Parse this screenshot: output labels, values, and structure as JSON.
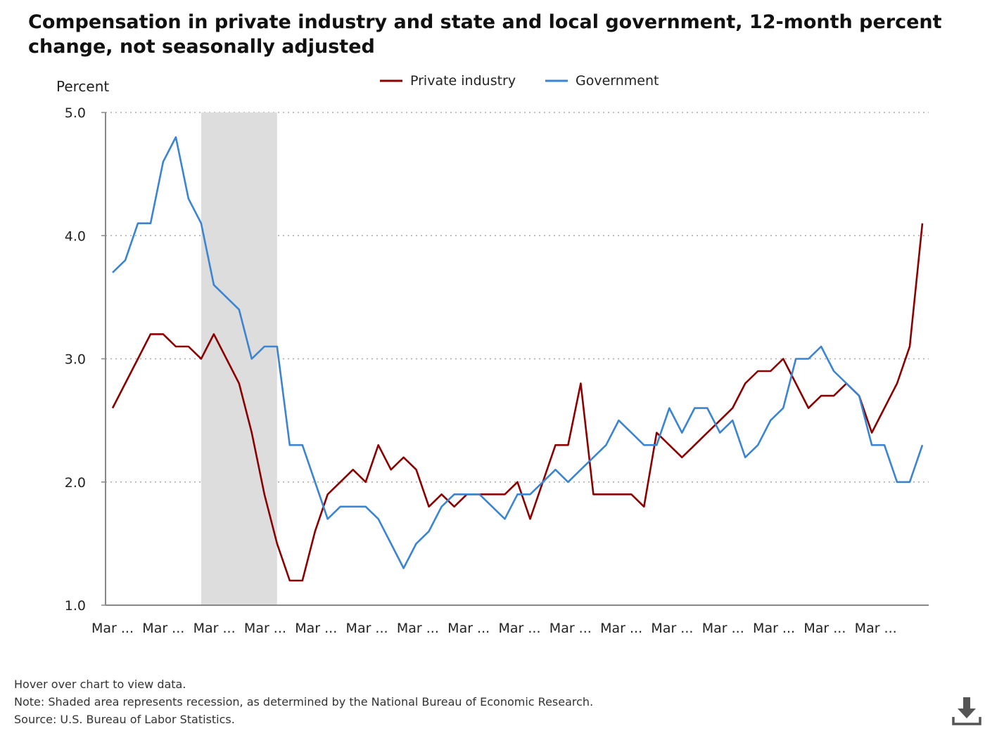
{
  "chart_data": {
    "type": "line",
    "title": "Compensation in private industry and state and local government, 12-month percent change, not seasonally adjusted",
    "ylabel": "Percent",
    "xlabel": "",
    "ylim": [
      1.0,
      5.0
    ],
    "yticks": [
      "1.0",
      "2.0",
      "3.0",
      "4.0",
      "5.0"
    ],
    "xtick_labels": [
      "Mar ...",
      "Mar ...",
      "Mar ...",
      "Mar ...",
      "Mar ...",
      "Mar ...",
      "Mar ...",
      "Mar ...",
      "Mar ...",
      "Mar ...",
      "Mar ...",
      "Mar ...",
      "Mar ...",
      "Mar ...",
      "Mar ...",
      "Mar ..."
    ],
    "grid": true,
    "legend_position": "top-center",
    "recession": {
      "start_index": 7,
      "end_index": 13
    },
    "series": [
      {
        "name": "Private industry",
        "color": "#8b0000",
        "values": [
          2.6,
          2.8,
          3.0,
          3.2,
          3.2,
          3.1,
          3.1,
          3.0,
          3.2,
          3.0,
          2.8,
          2.4,
          1.9,
          1.5,
          1.2,
          1.2,
          1.6,
          1.9,
          2.0,
          2.1,
          2.0,
          2.3,
          2.1,
          2.2,
          2.1,
          1.8,
          1.9,
          1.8,
          1.9,
          1.9,
          1.9,
          1.9,
          2.0,
          1.7,
          2.0,
          2.3,
          2.3,
          2.8,
          1.9,
          1.9,
          1.9,
          1.9,
          1.8,
          2.4,
          2.3,
          2.2,
          2.3,
          2.4,
          2.5,
          2.6,
          2.8,
          2.9,
          2.9,
          3.0,
          2.8,
          2.6,
          2.7,
          2.7,
          2.8,
          2.7,
          2.4,
          2.6,
          2.8,
          3.1,
          4.1
        ]
      },
      {
        "name": "Government",
        "color": "#3a84d2",
        "values": [
          3.7,
          3.8,
          4.1,
          4.1,
          4.6,
          4.8,
          4.3,
          4.1,
          3.6,
          3.5,
          3.4,
          3.0,
          3.1,
          3.1,
          2.3,
          2.3,
          2.0,
          1.7,
          1.8,
          1.8,
          1.8,
          1.7,
          1.5,
          1.3,
          1.5,
          1.6,
          1.8,
          1.9,
          1.9,
          1.9,
          1.8,
          1.7,
          1.9,
          1.9,
          2.0,
          2.1,
          2.0,
          2.1,
          2.2,
          2.3,
          2.5,
          2.4,
          2.3,
          2.3,
          2.6,
          2.4,
          2.6,
          2.6,
          2.4,
          2.5,
          2.2,
          2.3,
          2.5,
          2.6,
          3.0,
          3.0,
          3.1,
          2.9,
          2.8,
          2.7,
          2.3,
          2.3,
          2.0,
          2.0,
          2.3
        ]
      }
    ]
  },
  "footnotes": {
    "hover": "Hover over chart to view data.",
    "note": "Note: Shaded area represents recession, as determined by the National Bureau of Economic Research.",
    "source": "Source: U.S. Bureau of Labor Statistics."
  }
}
